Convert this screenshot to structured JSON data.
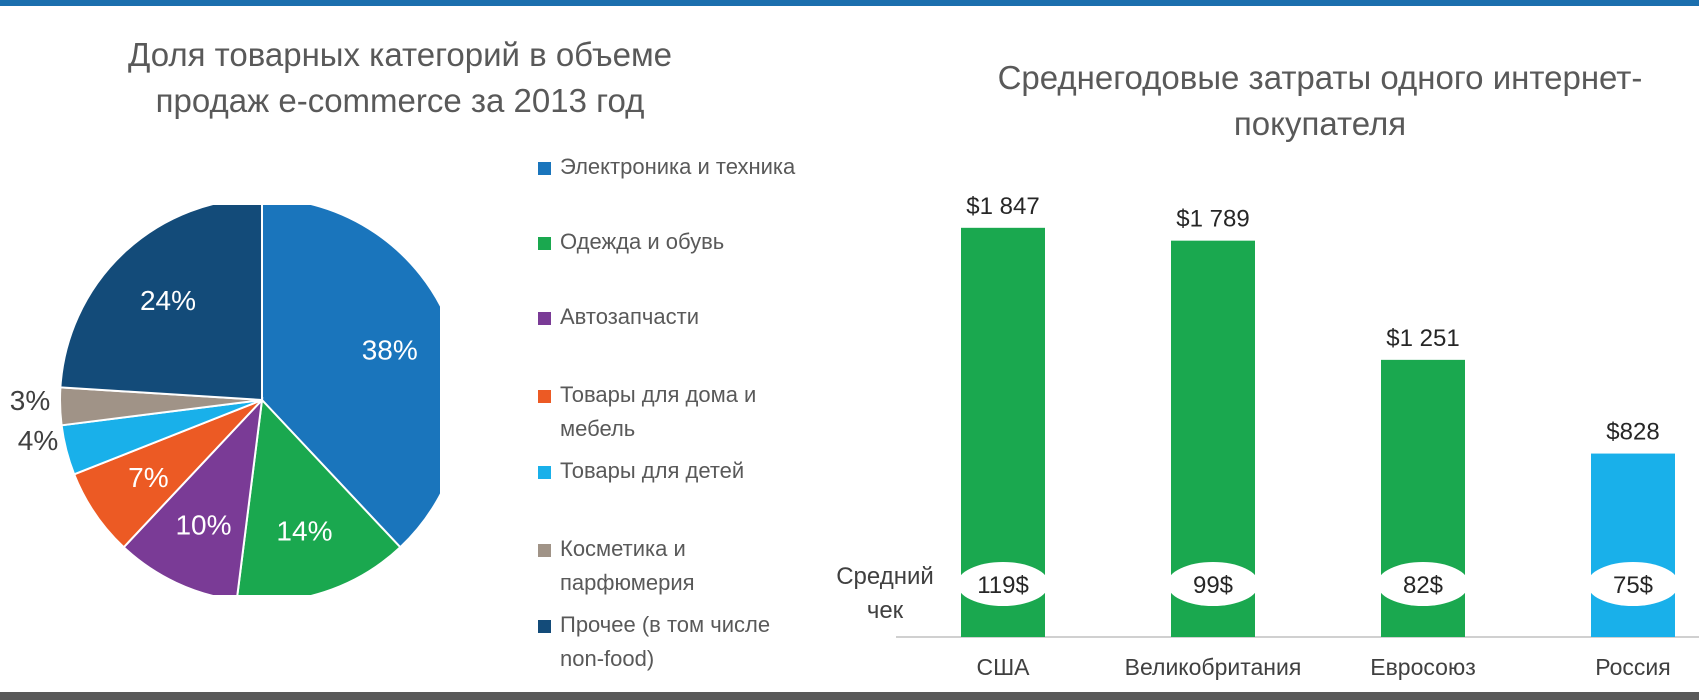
{
  "pie_title": "Доля товарных категорий в объеме\nпродаж e-commerce за 2013 год",
  "bar_title": "Среднегодовые затраты одного интернет-\nпокупателя",
  "avg_check_label": "Средний\nчек",
  "chart_data": [
    {
      "type": "pie",
      "title": "Доля товарных категорий в объеме продаж e-commerce за 2013 год",
      "legend_position": "right",
      "slices": [
        {
          "label": "Электроника и техника",
          "value": 38,
          "display": "38%",
          "color": "#1a75bc"
        },
        {
          "label": "Одежда и обувь",
          "value": 14,
          "display": "14%",
          "color": "#1aa84f"
        },
        {
          "label": "Автозапчасти",
          "value": 10,
          "display": "10%",
          "color": "#7a3b96"
        },
        {
          "label": "Товары для дома и\nмебель",
          "value": 7,
          "display": "7%",
          "color": "#ec5a24"
        },
        {
          "label": "Товары для детей",
          "value": 4,
          "display": "4%",
          "color": "#19b0ea"
        },
        {
          "label": "Косметика и\nпарфюмерия",
          "value": 3,
          "display": "3%",
          "color": "#a09387"
        },
        {
          "label": "Прочее (в том числе\nnon-food)",
          "value": 24,
          "display": "24%",
          "color": "#134b79"
        }
      ]
    },
    {
      "type": "bar",
      "title": "Среднегодовые затраты одного интернет-покупателя",
      "categories": [
        "США",
        "Великобритания",
        "Евросоюз",
        "Россия"
      ],
      "values": [
        1847,
        1789,
        1251,
        828
      ],
      "value_labels": [
        "$1 847",
        "$1 789",
        "$1 251",
        "$828"
      ],
      "avg_check_labels": [
        "119$",
        "99$",
        "82$",
        "75$"
      ],
      "colors": [
        "#1aa84f",
        "#1aa84f",
        "#1aa84f",
        "#19b0ea"
      ],
      "ylim": [
        0,
        1950
      ]
    }
  ]
}
